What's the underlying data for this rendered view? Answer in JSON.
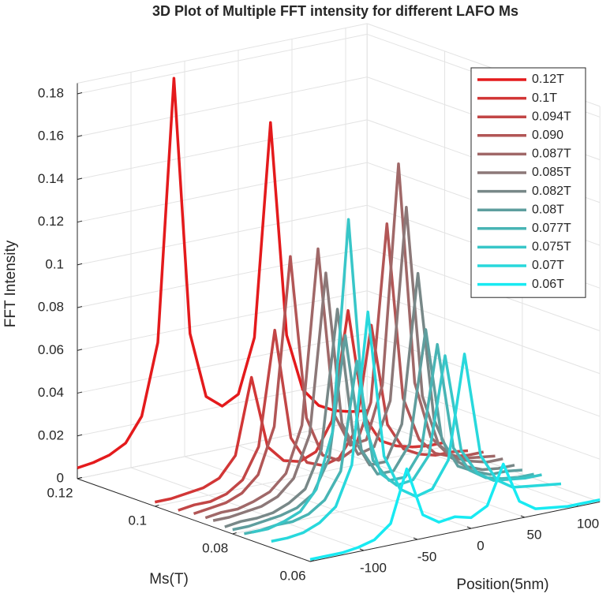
{
  "chart_data": {
    "type": "line3d",
    "title": "3D Plot of Multiple FFT intensity for different LAFO Ms",
    "xlabel": "Position(5nm)",
    "ylabel": "Ms(T)",
    "zlabel": "FFT Intensity",
    "x": [
      -150,
      -135,
      -120,
      -105,
      -90,
      -75,
      -60,
      -45,
      -30,
      -15,
      0,
      15,
      30,
      45,
      60,
      75,
      90,
      105,
      120
    ],
    "xlim": [
      -150,
      120
    ],
    "xticks": [
      -100,
      -50,
      0,
      50,
      100
    ],
    "ylim": [
      0.06,
      0.12
    ],
    "yticks": [
      0.06,
      0.08,
      0.1,
      0.12
    ],
    "zlim": [
      0,
      0.185
    ],
    "zticks": [
      0,
      0.02,
      0.04,
      0.06,
      0.08,
      0.1,
      0.12,
      0.14,
      0.16,
      0.18
    ],
    "grid": true,
    "legend": "upper right",
    "series": [
      {
        "name": "0.12T",
        "color": "#e41a1c",
        "ms": 0.12,
        "values": [
          0.005,
          0.006,
          0.008,
          0.012,
          0.023,
          0.056,
          0.178,
          0.057,
          0.026,
          0.02,
          0.024,
          0.049,
          0.148,
          0.047,
          0.02,
          0.011,
          0.007,
          0.005,
          0.004
        ]
      },
      {
        "name": "0.1T",
        "color": "#d23636",
        "ms": 0.1,
        "values": [
          0.002,
          0.002,
          0.003,
          0.004,
          0.007,
          0.016,
          0.051,
          0.017,
          0.009,
          0.007,
          0.01,
          0.023,
          0.073,
          0.022,
          0.009,
          0.005,
          0.003,
          0.002,
          0.002
        ]
      },
      {
        "name": "0.094T",
        "color": "#c24646",
        "ms": 0.094,
        "values": [
          0.002,
          0.003,
          0.003,
          0.005,
          0.01,
          0.024,
          0.077,
          0.025,
          0.012,
          0.009,
          0.011,
          0.022,
          0.07,
          0.022,
          0.009,
          0.005,
          0.003,
          0.003,
          0.002
        ]
      },
      {
        "name": "0.090",
        "color": "#b25656",
        "ms": 0.09,
        "values": [
          0.003,
          0.004,
          0.005,
          0.008,
          0.015,
          0.036,
          0.114,
          0.037,
          0.018,
          0.014,
          0.018,
          0.038,
          0.12,
          0.037,
          0.016,
          0.008,
          0.005,
          0.004,
          0.004
        ]
      },
      {
        "name": "0.087T",
        "color": "#a06868",
        "ms": 0.087,
        "values": [
          0.003,
          0.004,
          0.004,
          0.006,
          0.009,
          0.016,
          0.037,
          0.118,
          0.039,
          0.023,
          0.024,
          0.048,
          0.15,
          0.046,
          0.019,
          0.01,
          0.006,
          0.005,
          0.004
        ]
      },
      {
        "name": "0.085T",
        "color": "#8c7878",
        "ms": 0.085,
        "values": [
          0.003,
          0.003,
          0.004,
          0.005,
          0.008,
          0.015,
          0.034,
          0.108,
          0.036,
          0.02,
          0.022,
          0.042,
          0.131,
          0.041,
          0.017,
          0.009,
          0.006,
          0.004,
          0.004
        ]
      },
      {
        "name": "0.082T",
        "color": "#788888",
        "ms": 0.082,
        "values": [
          0.002,
          0.003,
          0.003,
          0.004,
          0.007,
          0.012,
          0.029,
          0.093,
          0.031,
          0.017,
          0.017,
          0.033,
          0.102,
          0.032,
          0.013,
          0.007,
          0.004,
          0.003,
          0.003
        ]
      },
      {
        "name": "0.08T",
        "color": "#5e9e9e",
        "ms": 0.08,
        "values": [
          0.002,
          0.002,
          0.003,
          0.004,
          0.006,
          0.011,
          0.026,
          0.082,
          0.027,
          0.014,
          0.014,
          0.025,
          0.077,
          0.024,
          0.01,
          0.006,
          0.003,
          0.003,
          0.002
        ]
      },
      {
        "name": "0.077T",
        "color": "#48b4b4",
        "ms": 0.077,
        "values": [
          0.002,
          0.002,
          0.003,
          0.003,
          0.005,
          0.01,
          0.022,
          0.072,
          0.024,
          0.013,
          0.013,
          0.024,
          0.072,
          0.022,
          0.01,
          0.005,
          0.003,
          0.002,
          0.002
        ]
      },
      {
        "name": "0.075T",
        "color": "#38c6c8",
        "ms": 0.075,
        "values": [
          0.004,
          0.004,
          0.006,
          0.009,
          0.018,
          0.043,
          0.141,
          0.044,
          0.019,
          0.012,
          0.013,
          0.023,
          0.068,
          0.022,
          0.01,
          0.005,
          0.004,
          0.003,
          0.003
        ]
      },
      {
        "name": "0.07T",
        "color": "#28d8dc",
        "ms": 0.07,
        "values": [
          0.003,
          0.003,
          0.004,
          0.007,
          0.013,
          0.031,
          0.101,
          0.032,
          0.015,
          0.01,
          0.012,
          0.024,
          0.072,
          0.023,
          0.01,
          0.005,
          0.004,
          0.003,
          0.002
        ]
      },
      {
        "name": "0.06T",
        "color": "#18eaf2",
        "ms": 0.06,
        "values": [
          0.001,
          0.001,
          0.001,
          0.002,
          0.004,
          0.01,
          0.034,
          0.011,
          0.006,
          0.007,
          0.005,
          0.009,
          0.027,
          0.008,
          0.003,
          0.002,
          0.001,
          0.001,
          0.001
        ]
      }
    ]
  }
}
